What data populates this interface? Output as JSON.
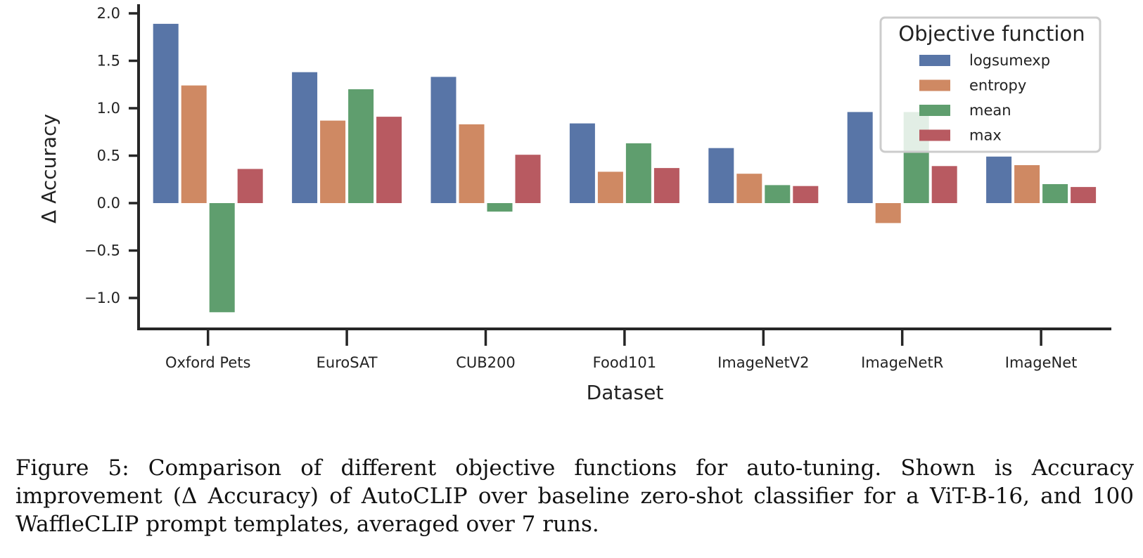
{
  "chart_data": {
    "type": "bar",
    "title": "",
    "xlabel": "Dataset",
    "ylabel": "Δ Accuracy",
    "ylim": [
      -1.3,
      2.05
    ],
    "yticks": [
      2.0,
      1.5,
      1.0,
      0.5,
      0.0,
      -0.5,
      -1.0
    ],
    "ytick_labels": [
      "2.0",
      "1.5",
      "1.0",
      "0.5",
      "0.0",
      "−0.5",
      "−1.0"
    ],
    "grid": false,
    "legend_title": "Objective function",
    "legend_position": "top-right",
    "categories": [
      "Oxford Pets",
      "EuroSAT",
      "CUB200",
      "Food101",
      "ImageNetV2",
      "ImageNetR",
      "ImageNet"
    ],
    "series": [
      {
        "name": "logsumexp",
        "color": "#5875a7",
        "values": [
          1.89,
          1.38,
          1.33,
          0.84,
          0.58,
          0.96,
          0.49
        ]
      },
      {
        "name": "entropy",
        "color": "#cf8963",
        "values": [
          1.24,
          0.87,
          0.83,
          0.33,
          0.31,
          -0.21,
          0.4
        ]
      },
      {
        "name": "mean",
        "color": "#5f9e6e",
        "values": [
          -1.15,
          1.2,
          -0.09,
          0.63,
          0.19,
          0.96,
          0.2
        ]
      },
      {
        "name": "max",
        "color": "#b85a61",
        "values": [
          0.36,
          0.91,
          0.51,
          0.37,
          0.18,
          0.39,
          0.17
        ]
      }
    ]
  },
  "caption": {
    "text": "Figure 5: Comparison of different objective functions for auto-tuning. Shown is Accuracy improvement (Δ Accuracy) of AutoCLIP over baseline zero-shot classifier for a ViT-B-16, and 100 WaffleCLIP prompt templates, averaged over 7 runs."
  }
}
